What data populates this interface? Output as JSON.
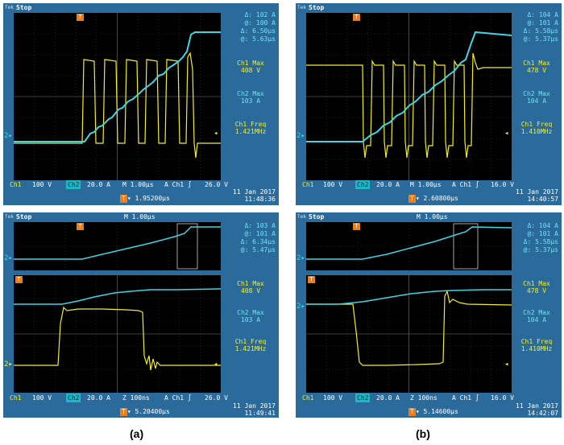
{
  "panels": [
    {
      "status": "Stop",
      "meas_top": [
        "Δ:  102 A",
        "@:  100 A",
        "Δ:  6.50µs",
        "@:  5.63µs"
      ],
      "ch1_max_label": "Ch1 Max",
      "ch1_max_value": "408 V",
      "ch2_max_label": "Ch2 Max",
      "ch2_max_value": "103 A",
      "ch1_freq_label": "Ch1 Freq",
      "ch1_freq_value": "1.421MHz",
      "ch1": "Ch1",
      "ch1_scale": "100 V",
      "ch2": "Ch2",
      "ch2_scale": "20.0 A",
      "timebase": "M 1.00µs",
      "trig": "A  Ch1  ∫",
      "trig_level": "26.0 V",
      "date": "11 Jan  2017",
      "time": "11:48:36",
      "cursor": "▾ 1.95200µs"
    },
    {
      "status": "Stop",
      "meas_top": [
        "Δ:  104 A",
        "@:  101 A",
        "Δ:  5.58µs",
        "@:  5.37µs"
      ],
      "ch1_max_label": "Ch1 Max",
      "ch1_max_value": "478 V",
      "ch2_max_label": "Ch2 Max",
      "ch2_max_value": "104 A",
      "ch1_freq_label": "Ch1 Freq",
      "ch1_freq_value": "1.410MHz",
      "ch1": "Ch1",
      "ch1_scale": "100 V",
      "ch2": "Ch2",
      "ch2_scale": "20.0 A",
      "timebase": "M 1.00µs",
      "trig": "A  Ch1  ∫",
      "trig_level": "16.0 V",
      "date": "11 Jan  2017",
      "time": "14:40:57",
      "cursor": "▾ 2.60800µs"
    },
    {
      "status": "Stop",
      "header_timebase": "M 1.00µs",
      "meas_top": [
        "Δ:  103 A",
        "@:  101 A",
        "Δ:  6.34µs",
        "@:  5.47µs"
      ],
      "ch1_max_label": "Ch1 Max",
      "ch1_max_value": "408 V",
      "ch2_max_label": "Ch2 Max",
      "ch2_max_value": "103 A",
      "ch1_freq_label": "Ch1 Freq",
      "ch1_freq_value": "1.421MHz",
      "ch1": "Ch1",
      "ch1_scale": "100 V",
      "ch2": "Ch2",
      "ch2_scale": "20.0 A",
      "timebase": "Z  100ns",
      "trig": "A  Ch1  ∫",
      "trig_level": "26.0 V",
      "date": "11 Jan  2017",
      "time": "11:49:41",
      "cursor": "▾ 5.20400µs"
    },
    {
      "status": "Stop",
      "header_timebase": "M 1.00µs",
      "meas_top": [
        "Δ:  104 A",
        "@:  101 A",
        "Δ:  5.58µs",
        "@:  5.37µs"
      ],
      "ch1_max_label": "Ch1 Max",
      "ch1_max_value": "478 V",
      "ch2_max_label": "Ch2 Max",
      "ch2_max_value": "104 A",
      "ch1_freq_label": "Ch1 Freq",
      "ch1_freq_value": "1.410MHz",
      "ch1": "Ch1",
      "ch1_scale": "100 V",
      "ch2": "Ch2",
      "ch2_scale": "20.0 A",
      "timebase": "Z  100ns",
      "trig": "A  Ch1  ∫",
      "trig_level": "16.0 V",
      "date": "11 Jan  2017",
      "time": "14:42:07",
      "cursor": "▾ 5.14600µs"
    }
  ],
  "captions": {
    "a": "(a)",
    "b": "(b)"
  },
  "colors": {
    "ch1": "#f4ee2a",
    "ch2": "#3fd4e6",
    "frame": "#2b6b9b",
    "trigger": "#f07e18"
  }
}
